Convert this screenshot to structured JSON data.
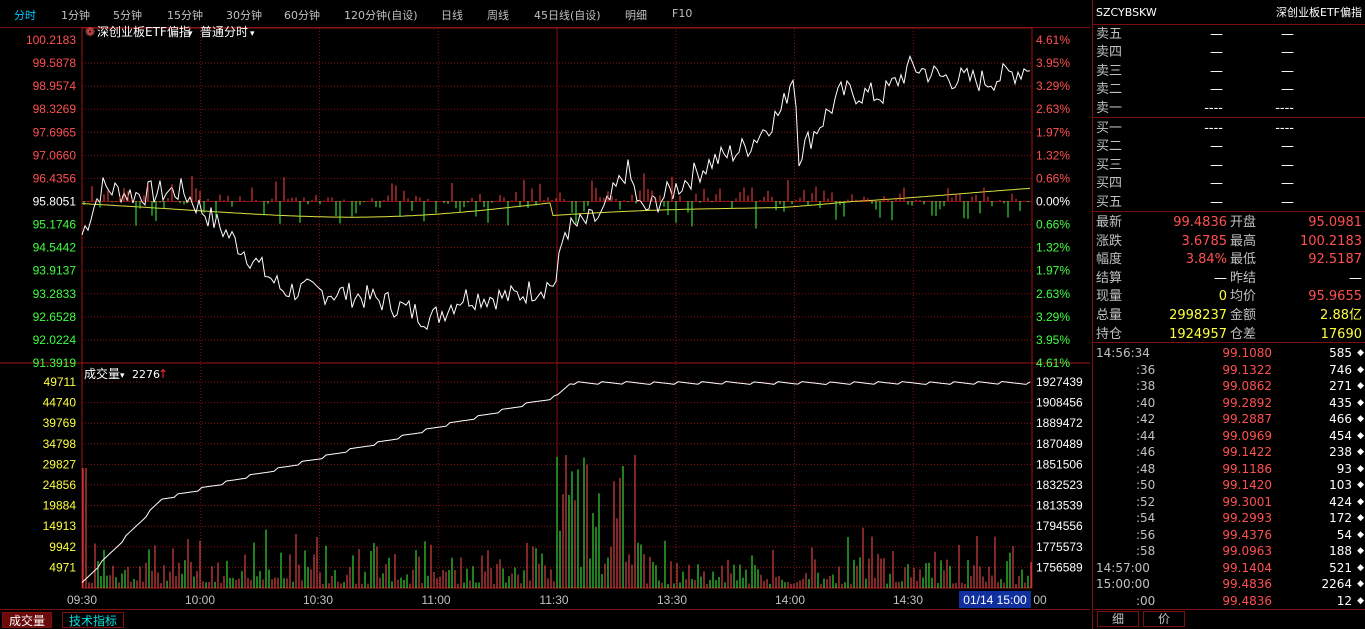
{
  "topbar": {
    "tabs": [
      "分时",
      "1分钟",
      "5分钟",
      "15分钟",
      "30分钟",
      "60分钟",
      "120分钟(自设)",
      "日线",
      "周线",
      "45日线(自设)",
      "明细",
      "F10"
    ]
  },
  "price_chart": {
    "name": "深创业板ETF偏指",
    "mode": "普通分时",
    "left_ticks": [
      "100.2183",
      "99.5878",
      "98.9574",
      "98.3269",
      "97.6965",
      "97.0660",
      "96.4356",
      "95.8051",
      "95.1746",
      "94.5442",
      "93.9137",
      "93.2833",
      "92.6528",
      "92.0224",
      "91.3919"
    ],
    "right_ticks": [
      "4.61%",
      "3.95%",
      "3.29%",
      "2.63%",
      "1.97%",
      "1.32%",
      "0.66%",
      "0.00%",
      "0.66%",
      "1.32%",
      "1.97%",
      "2.63%",
      "3.29%",
      "3.95%",
      "4.61%"
    ]
  },
  "volume_chart": {
    "label": "成交量",
    "value": "2276",
    "left_ticks": [
      "49711",
      "44740",
      "39769",
      "34798",
      "29827",
      "24856",
      "19884",
      "14913",
      "9942",
      "4971"
    ],
    "right_ticks": [
      "1927439",
      "1908456",
      "1889472",
      "1870489",
      "1851506",
      "1832523",
      "1813539",
      "1794556",
      "1775573",
      "1756589"
    ]
  },
  "time_axis": [
    "09:30",
    "10:00",
    "10:30",
    "11:00",
    "11:30",
    "13:30",
    "14:00",
    "14:30",
    "01/14 15:00",
    "00"
  ],
  "bottom_tabs": [
    "成交量",
    "技术指标"
  ],
  "side": {
    "code": "SZCYBSKW",
    "name": "深创业板ETF偏指",
    "asks": [
      {
        "label": "卖五",
        "p": "—",
        "v": "—"
      },
      {
        "label": "卖四",
        "p": "—",
        "v": "—"
      },
      {
        "label": "卖三",
        "p": "—",
        "v": "—"
      },
      {
        "label": "卖二",
        "p": "—",
        "v": "—"
      },
      {
        "label": "卖一",
        "p": "----",
        "v": "----"
      }
    ],
    "bids": [
      {
        "label": "买一",
        "p": "----",
        "v": "----"
      },
      {
        "label": "买二",
        "p": "—",
        "v": "—"
      },
      {
        "label": "买三",
        "p": "—",
        "v": "—"
      },
      {
        "label": "买四",
        "p": "—",
        "v": "—"
      },
      {
        "label": "买五",
        "p": "—",
        "v": "—"
      }
    ],
    "stats": [
      {
        "l1": "最新",
        "v1": "99.4836",
        "l2": "开盘",
        "v2": "95.0981",
        "c1": "red",
        "c2": "red"
      },
      {
        "l1": "涨跌",
        "v1": "3.6785",
        "l2": "最高",
        "v2": "100.2183",
        "c1": "red",
        "c2": "red"
      },
      {
        "l1": "幅度",
        "v1": "3.84%",
        "l2": "最低",
        "v2": "92.5187",
        "c1": "red",
        "c2": "red"
      },
      {
        "l1": "结算",
        "v1": "—",
        "l2": "昨结",
        "v2": "—",
        "c1": "wht",
        "c2": "wht"
      },
      {
        "l1": "现量",
        "v1": "0",
        "l2": "均价",
        "v2": "95.9655",
        "c1": "yel",
        "c2": "red"
      },
      {
        "l1": "总量",
        "v1": "2998237",
        "l2": "金额",
        "v2": "2.88亿",
        "c1": "yel",
        "c2": "yel"
      },
      {
        "l1": "持仓",
        "v1": "1924957",
        "l2": "仓差",
        "v2": "17690",
        "c1": "yel",
        "c2": "yel"
      }
    ],
    "ticks": [
      {
        "t": "14:56:34",
        "p": "99.1080",
        "v": "585"
      },
      {
        "t": ":36",
        "p": "99.1322",
        "v": "746"
      },
      {
        "t": ":38",
        "p": "99.0862",
        "v": "271"
      },
      {
        "t": ":40",
        "p": "99.2892",
        "v": "435"
      },
      {
        "t": ":42",
        "p": "99.2887",
        "v": "466"
      },
      {
        "t": ":44",
        "p": "99.0969",
        "v": "454"
      },
      {
        "t": ":46",
        "p": "99.1422",
        "v": "238"
      },
      {
        "t": ":48",
        "p": "99.1186",
        "v": "93"
      },
      {
        "t": ":50",
        "p": "99.1420",
        "v": "103"
      },
      {
        "t": ":52",
        "p": "99.3001",
        "v": "424"
      },
      {
        "t": ":54",
        "p": "99.2993",
        "v": "172"
      },
      {
        "t": ":56",
        "p": "99.4376",
        "v": "54"
      },
      {
        "t": ":58",
        "p": "99.0963",
        "v": "188"
      },
      {
        "t": "14:57:00",
        "p": "99.1404",
        "v": "521"
      },
      {
        "t": "15:00:00",
        "p": "99.4836",
        "v": "2264"
      },
      {
        "t": ":00",
        "p": "99.4836",
        "v": "12"
      }
    ],
    "tick_arrow": "◆",
    "tabs": [
      "细",
      "价"
    ]
  }
}
